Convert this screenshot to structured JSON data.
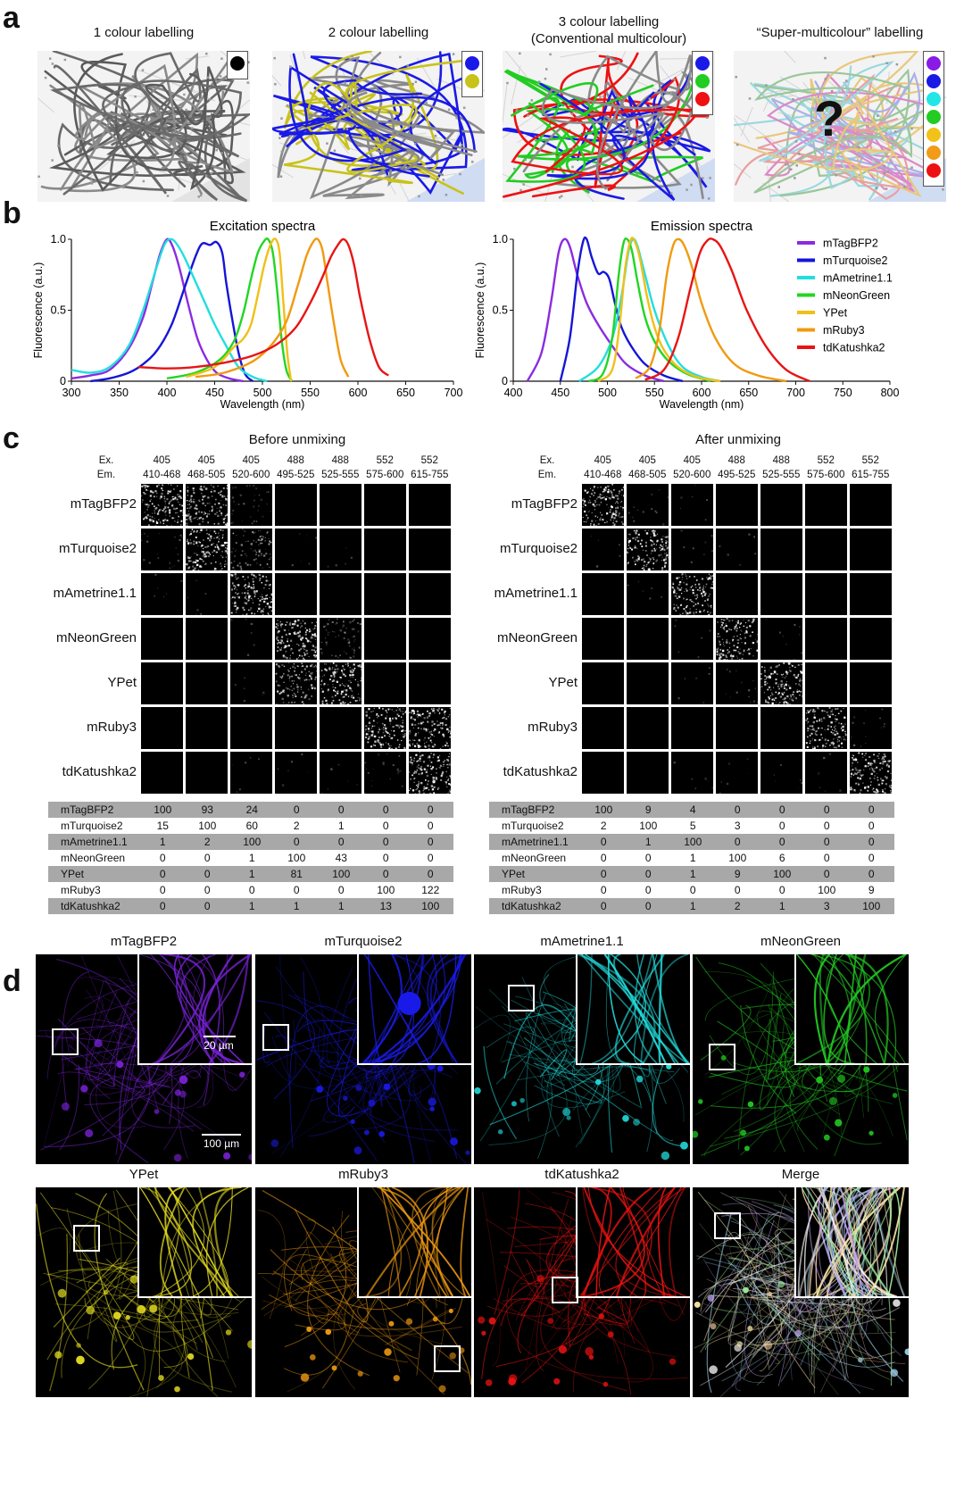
{
  "panel_labels": {
    "a": "a",
    "b": "b",
    "c": "c",
    "d": "d"
  },
  "panel_a": {
    "maps": [
      {
        "title": "1 colour labelling",
        "colors": [
          "#000000"
        ]
      },
      {
        "title": "2 colour labelling",
        "colors": [
          "#1a1ae6",
          "#c8c21a"
        ]
      },
      {
        "title": "3 colour labelling",
        "subtitle": "(Conventional  multicolour)",
        "colors": [
          "#1a1ae6",
          "#22cc22",
          "#ee1111"
        ]
      },
      {
        "title": "“Super-multicolour” labelling",
        "colors": [
          "#8a1ae6",
          "#1a1ae6",
          "#22e6e6",
          "#22cc22",
          "#f2c21a",
          "#f29a1a",
          "#ee1111"
        ],
        "overlay": "?"
      }
    ]
  },
  "chart_data": [
    {
      "type": "line",
      "title": "Excitation spectra",
      "xlabel": "Wavelength (nm)",
      "ylabel": "Fluorescence (a.u.)",
      "xlim": [
        300,
        700
      ],
      "ylim": [
        0,
        1.0
      ],
      "xticks": [
        300,
        350,
        400,
        450,
        500,
        550,
        600,
        650,
        700
      ],
      "yticks": [
        0,
        0.5,
        1.0
      ],
      "ytick_labels": [
        "0",
        "0.5",
        "1.0"
      ],
      "series": [
        {
          "name": "mTagBFP2",
          "color": "#8a2be2",
          "x": [
            300,
            320,
            340,
            360,
            375,
            385,
            393,
            400,
            406,
            413,
            422,
            432,
            442,
            452,
            465,
            480
          ],
          "y": [
            0.02,
            0.04,
            0.08,
            0.23,
            0.45,
            0.7,
            0.9,
            1.0,
            0.95,
            0.8,
            0.55,
            0.3,
            0.15,
            0.06,
            0.02,
            0.0
          ]
        },
        {
          "name": "mTurquoise2",
          "color": "#1515d8",
          "x": [
            320,
            340,
            360,
            375,
            390,
            405,
            418,
            430,
            437,
            445,
            452,
            458,
            462,
            468,
            475,
            482,
            490
          ],
          "y": [
            0.0,
            0.02,
            0.06,
            0.12,
            0.22,
            0.4,
            0.65,
            0.88,
            0.97,
            0.96,
            0.98,
            0.9,
            0.7,
            0.45,
            0.2,
            0.05,
            0.0
          ]
        },
        {
          "name": "mAmetrine1.1",
          "color": "#22dede",
          "x": [
            300,
            320,
            340,
            360,
            375,
            390,
            398,
            405,
            412,
            420,
            430,
            440,
            450,
            462,
            475,
            490,
            505
          ],
          "y": [
            0.08,
            0.06,
            0.1,
            0.25,
            0.5,
            0.82,
            0.97,
            1.0,
            0.95,
            0.85,
            0.7,
            0.55,
            0.4,
            0.25,
            0.1,
            0.03,
            0.0
          ]
        },
        {
          "name": "mNeonGreen",
          "color": "#22d622",
          "x": [
            400,
            430,
            455,
            470,
            480,
            488,
            495,
            501,
            506,
            511,
            516,
            520,
            525,
            531
          ],
          "y": [
            0.02,
            0.06,
            0.15,
            0.28,
            0.48,
            0.72,
            0.9,
            0.98,
            1.0,
            0.9,
            0.6,
            0.3,
            0.08,
            0.0
          ]
        },
        {
          "name": "YPet",
          "color": "#f0c018",
          "x": [
            420,
            450,
            470,
            480,
            488,
            495,
            502,
            509,
            514,
            518,
            522,
            526,
            530
          ],
          "y": [
            0.03,
            0.1,
            0.24,
            0.3,
            0.4,
            0.6,
            0.82,
            0.97,
            1.0,
            0.9,
            0.55,
            0.2,
            0.0
          ]
        },
        {
          "name": "mRuby3",
          "color": "#f09a10",
          "x": [
            430,
            460,
            490,
            510,
            525,
            536,
            546,
            553,
            558,
            563,
            568,
            575,
            582,
            590
          ],
          "y": [
            0.03,
            0.06,
            0.14,
            0.26,
            0.42,
            0.65,
            0.88,
            0.98,
            1.0,
            0.92,
            0.7,
            0.4,
            0.15,
            0.03
          ]
        },
        {
          "name": "tdKatushka2",
          "color": "#e81414",
          "x": [
            370,
            400,
            430,
            460,
            490,
            515,
            535,
            550,
            562,
            572,
            580,
            585,
            590,
            596,
            602,
            612,
            622,
            632
          ],
          "y": [
            0.1,
            0.09,
            0.1,
            0.13,
            0.18,
            0.26,
            0.38,
            0.55,
            0.72,
            0.88,
            0.97,
            1.0,
            0.96,
            0.82,
            0.6,
            0.3,
            0.1,
            0.04
          ]
        }
      ]
    },
    {
      "type": "line",
      "title": "Emission spectra",
      "xlabel": "Wavelength (nm)",
      "ylabel": "Fluorescence (a.u.)",
      "xlim": [
        400,
        800
      ],
      "ylim": [
        0,
        1.0
      ],
      "xticks": [
        400,
        450,
        500,
        550,
        600,
        650,
        700,
        750,
        800
      ],
      "yticks": [
        0,
        0.5,
        1.0
      ],
      "ytick_labels": [
        "0",
        "0.5",
        "1.0"
      ],
      "series": [
        {
          "name": "mTagBFP2",
          "color": "#8a2be2",
          "x": [
            415,
            430,
            440,
            448,
            454,
            460,
            468,
            478,
            490,
            505,
            520,
            540,
            560
          ],
          "y": [
            0.0,
            0.2,
            0.55,
            0.9,
            1.0,
            0.95,
            0.75,
            0.55,
            0.4,
            0.25,
            0.12,
            0.04,
            0.0
          ]
        },
        {
          "name": "mTurquoise2",
          "color": "#1515d8",
          "x": [
            450,
            460,
            468,
            474,
            478,
            483,
            490,
            496,
            502,
            508,
            515,
            525,
            540,
            560,
            580
          ],
          "y": [
            0.0,
            0.3,
            0.75,
            0.98,
            1.0,
            0.88,
            0.76,
            0.77,
            0.72,
            0.55,
            0.38,
            0.25,
            0.12,
            0.04,
            0.0
          ]
        },
        {
          "name": "mAmetrine1.1",
          "color": "#22dede",
          "x": [
            470,
            490,
            505,
            515,
            522,
            527,
            532,
            540,
            550,
            565,
            580,
            600,
            620
          ],
          "y": [
            0.0,
            0.1,
            0.3,
            0.6,
            0.9,
            1.0,
            0.95,
            0.75,
            0.5,
            0.25,
            0.1,
            0.03,
            0.0
          ]
        },
        {
          "name": "mNeonGreen",
          "color": "#22d622",
          "x": [
            480,
            495,
            505,
            512,
            517,
            521,
            526,
            532,
            540,
            550,
            565,
            585,
            610
          ],
          "y": [
            0.0,
            0.05,
            0.3,
            0.75,
            0.97,
            1.0,
            0.92,
            0.7,
            0.45,
            0.28,
            0.14,
            0.05,
            0.0
          ]
        },
        {
          "name": "YPet",
          "color": "#f0c018",
          "x": [
            490,
            505,
            513,
            519,
            525,
            530,
            535,
            542,
            550,
            560,
            575,
            595,
            620
          ],
          "y": [
            0.0,
            0.08,
            0.4,
            0.8,
            1.0,
            0.97,
            0.85,
            0.6,
            0.38,
            0.22,
            0.1,
            0.03,
            0.0
          ]
        },
        {
          "name": "mRuby3",
          "color": "#f09a10",
          "x": [
            530,
            545,
            555,
            563,
            570,
            576,
            582,
            590,
            600,
            615,
            635,
            660,
            690
          ],
          "y": [
            0.02,
            0.1,
            0.35,
            0.75,
            0.96,
            1.0,
            0.95,
            0.8,
            0.55,
            0.3,
            0.12,
            0.04,
            0.0
          ]
        },
        {
          "name": "tdKatushka2",
          "color": "#e81414",
          "x": [
            540,
            560,
            575,
            588,
            598,
            606,
            612,
            620,
            632,
            648,
            668,
            690,
            715
          ],
          "y": [
            0.01,
            0.08,
            0.3,
            0.65,
            0.9,
            0.99,
            1.0,
            0.95,
            0.78,
            0.5,
            0.25,
            0.08,
            0.0
          ]
        }
      ]
    }
  ],
  "panel_c": {
    "channels_ex": [
      "405",
      "405",
      "405",
      "488",
      "488",
      "552",
      "552"
    ],
    "channels_em": [
      "410-468",
      "468-505",
      "520-600",
      "495-525",
      "525-555",
      "575-600",
      "615-755"
    ],
    "ex_label": "Ex.",
    "em_label": "Em.",
    "rows": [
      "mTagBFP2",
      "mTurquoise2",
      "mAmetrine1.1",
      "mNeonGreen",
      "YPet",
      "mRuby3",
      "tdKatushka2"
    ],
    "before": {
      "title": "Before unmixing",
      "table": [
        [
          100,
          93,
          24,
          0,
          0,
          0,
          0
        ],
        [
          15,
          100,
          60,
          2,
          1,
          0,
          0
        ],
        [
          1,
          2,
          100,
          0,
          0,
          0,
          0
        ],
        [
          0,
          0,
          1,
          100,
          43,
          0,
          0
        ],
        [
          0,
          0,
          1,
          81,
          100,
          0,
          0
        ],
        [
          0,
          0,
          0,
          0,
          0,
          100,
          122
        ],
        [
          0,
          0,
          1,
          1,
          1,
          13,
          100
        ]
      ]
    },
    "after": {
      "title": "After unmixing",
      "table": [
        [
          100,
          9,
          4,
          0,
          0,
          0,
          0
        ],
        [
          2,
          100,
          5,
          3,
          0,
          0,
          0
        ],
        [
          0,
          1,
          100,
          0,
          0,
          0,
          0
        ],
        [
          0,
          0,
          1,
          100,
          6,
          0,
          0
        ],
        [
          0,
          0,
          1,
          9,
          100,
          0,
          0
        ],
        [
          0,
          0,
          0,
          0,
          0,
          100,
          9
        ],
        [
          0,
          0,
          1,
          2,
          1,
          3,
          100
        ]
      ]
    }
  },
  "panel_d": {
    "images": [
      {
        "title": "mTagBFP2",
        "color": "#7a22d8"
      },
      {
        "title": "mTurquoise2",
        "color": "#1a1ae8"
      },
      {
        "title": "mAmetrine1.1",
        "color": "#22dcdc"
      },
      {
        "title": "mNeonGreen",
        "color": "#22c822"
      },
      {
        "title": "YPet",
        "color": "#e8e020"
      },
      {
        "title": "mRuby3",
        "color": "#f09a10"
      },
      {
        "title": "tdKatushka2",
        "color": "#ee1212"
      },
      {
        "title": "Merge",
        "color": "#f0f0f0"
      }
    ],
    "scale_small": "20 µm",
    "scale_large": "100 µm"
  }
}
